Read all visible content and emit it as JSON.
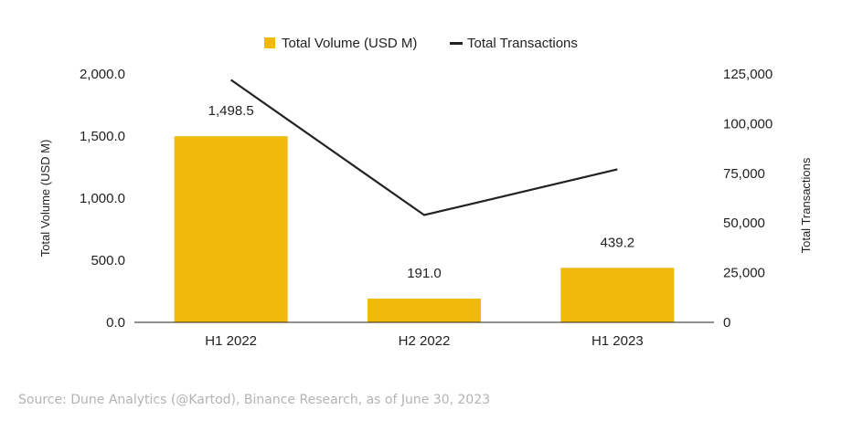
{
  "chart_data": {
    "type": "bar",
    "categories": [
      "H1 2022",
      "H2 2022",
      "H1 2023"
    ],
    "series": [
      {
        "name": "Total Volume (USD M)",
        "type": "bar",
        "axis": "left",
        "values": [
          1498.5,
          191.0,
          439.2
        ],
        "labels": [
          "1,498.5",
          "191.0",
          "439.2"
        ],
        "color": "#F0B90B"
      },
      {
        "name": "Total Transactions",
        "type": "line",
        "axis": "right",
        "values": [
          122000,
          54000,
          77000
        ],
        "color": "#222222"
      }
    ],
    "ylabel": "Total Volume (USD M)",
    "y2label": "Total Transactions",
    "ylim": [
      0,
      2000
    ],
    "y2lim": [
      0,
      125000
    ],
    "yticks": [
      "0.0",
      "500.0",
      "1,000.0",
      "1,500.0",
      "2,000.0"
    ],
    "y2ticks": [
      "0",
      "25,000",
      "50,000",
      "75,000",
      "100,000",
      "125,000"
    ],
    "legend_position": "top-center",
    "grid": false
  },
  "source": "Source: Dune Analytics (@Kartod), Binance Research, as of June 30, 2023"
}
